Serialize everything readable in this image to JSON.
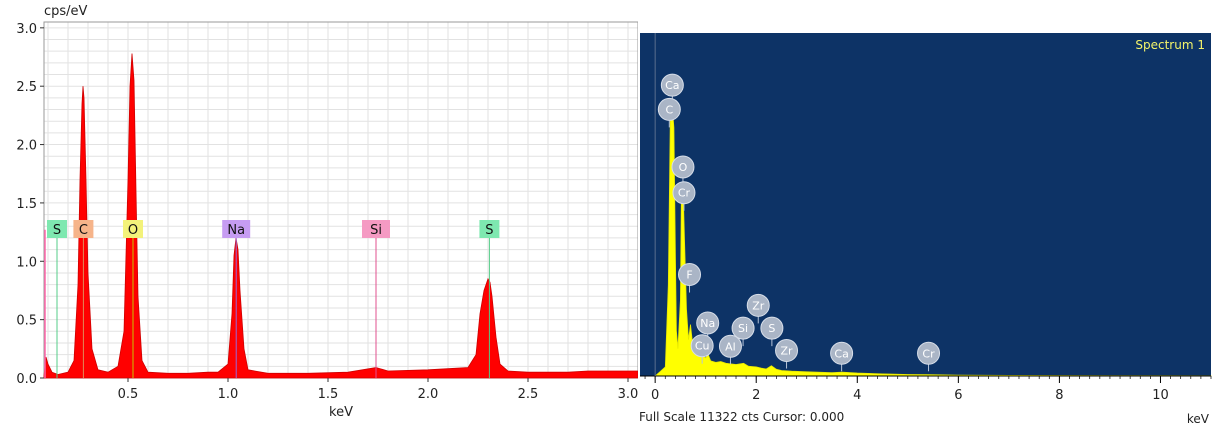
{
  "chart_data": [
    {
      "type": "area",
      "ylabel": "cps/eV",
      "xlabel": "keV",
      "xlim": [
        0.08,
        3.05
      ],
      "ylim": [
        0,
        3.05
      ],
      "x_ticks": [
        "0.5",
        "1.0",
        "1.5",
        "2.0",
        "2.5",
        "3.0"
      ],
      "x_tick_values": [
        0.5,
        1.0,
        1.5,
        2.0,
        2.5,
        3.0
      ],
      "y_ticks": [
        "0.0",
        "0.5",
        "1.0",
        "1.5",
        "2.0",
        "2.5",
        "3.0"
      ],
      "y_tick_values": [
        0.0,
        0.5,
        1.0,
        1.5,
        2.0,
        2.5,
        3.0
      ],
      "grid": true,
      "fill_color": "#ff0000",
      "series": [
        {
          "points": [
            [
              0.08,
              0.02
            ],
            [
              0.09,
              0.18
            ],
            [
              0.1,
              0.12
            ],
            [
              0.12,
              0.05
            ],
            [
              0.15,
              0.03
            ],
            [
              0.2,
              0.05
            ],
            [
              0.23,
              0.15
            ],
            [
              0.25,
              0.8
            ],
            [
              0.26,
              1.7
            ],
            [
              0.27,
              2.35
            ],
            [
              0.275,
              2.5
            ],
            [
              0.28,
              2.4
            ],
            [
              0.29,
              1.7
            ],
            [
              0.3,
              0.9
            ],
            [
              0.32,
              0.25
            ],
            [
              0.35,
              0.07
            ],
            [
              0.4,
              0.05
            ],
            [
              0.45,
              0.1
            ],
            [
              0.48,
              0.4
            ],
            [
              0.5,
              1.7
            ],
            [
              0.51,
              2.5
            ],
            [
              0.52,
              2.78
            ],
            [
              0.53,
              2.55
            ],
            [
              0.54,
              1.6
            ],
            [
              0.55,
              0.7
            ],
            [
              0.57,
              0.15
            ],
            [
              0.6,
              0.05
            ],
            [
              0.7,
              0.04
            ],
            [
              0.8,
              0.04
            ],
            [
              0.9,
              0.05
            ],
            [
              0.95,
              0.05
            ],
            [
              1.0,
              0.12
            ],
            [
              1.02,
              0.55
            ],
            [
              1.03,
              1.05
            ],
            [
              1.04,
              1.2
            ],
            [
              1.05,
              1.1
            ],
            [
              1.06,
              0.75
            ],
            [
              1.08,
              0.25
            ],
            [
              1.1,
              0.07
            ],
            [
              1.2,
              0.04
            ],
            [
              1.4,
              0.04
            ],
            [
              1.6,
              0.05
            ],
            [
              1.74,
              0.09
            ],
            [
              1.8,
              0.06
            ],
            [
              2.0,
              0.07
            ],
            [
              2.1,
              0.08
            ],
            [
              2.2,
              0.09
            ],
            [
              2.24,
              0.2
            ],
            [
              2.26,
              0.55
            ],
            [
              2.28,
              0.75
            ],
            [
              2.3,
              0.85
            ],
            [
              2.31,
              0.82
            ],
            [
              2.32,
              0.7
            ],
            [
              2.34,
              0.35
            ],
            [
              2.36,
              0.12
            ],
            [
              2.4,
              0.06
            ],
            [
              2.5,
              0.05
            ],
            [
              2.6,
              0.05
            ],
            [
              2.7,
              0.05
            ],
            [
              2.8,
              0.06
            ],
            [
              2.9,
              0.06
            ],
            [
              3.0,
              0.06
            ],
            [
              3.05,
              0.06
            ]
          ]
        }
      ],
      "element_markers": [
        {
          "label": "S",
          "x": 0.145,
          "color": "#7ee8b0",
          "line": "#55cc88"
        },
        {
          "label": "C",
          "x": 0.277,
          "color": "#f6b48a",
          "line": "#e08a5a"
        },
        {
          "label": "O",
          "x": 0.525,
          "color": "#f3f27a",
          "line": "#c8c400"
        },
        {
          "label": "Na",
          "x": 1.041,
          "color": "#c69cf2",
          "line": "#9a66d8"
        },
        {
          "label": "Si",
          "x": 1.74,
          "color": "#f59ac3",
          "line": "#e0508f"
        },
        {
          "label": "S",
          "x": 2.307,
          "color": "#7ee8b0",
          "line": "#55cc88"
        }
      ],
      "left_edge_marker_color": "#ff66aa"
    },
    {
      "type": "area",
      "title": "Spectrum 1",
      "xlabel": "keV",
      "xlim": [
        -0.3,
        11.0
      ],
      "x_ticks": [
        "0",
        "2",
        "4",
        "6",
        "8",
        "10"
      ],
      "x_tick_values": [
        0,
        2,
        4,
        6,
        8,
        10
      ],
      "background_color": "#0d3366",
      "fill_color": "#ffff00",
      "ylim": [
        0,
        11322
      ],
      "series": [
        {
          "points": [
            [
              0.0,
              0
            ],
            [
              0.2,
              300
            ],
            [
              0.26,
              3000
            ],
            [
              0.3,
              8500
            ],
            [
              0.33,
              9100
            ],
            [
              0.37,
              8200
            ],
            [
              0.4,
              4000
            ],
            [
              0.42,
              1500
            ],
            [
              0.45,
              900
            ],
            [
              0.5,
              2500
            ],
            [
              0.52,
              6000
            ],
            [
              0.55,
              6300
            ],
            [
              0.58,
              4500
            ],
            [
              0.62,
              2200
            ],
            [
              0.66,
              1200
            ],
            [
              0.7,
              1700
            ],
            [
              0.75,
              900
            ],
            [
              0.8,
              1000
            ],
            [
              0.9,
              700
            ],
            [
              1.0,
              600
            ],
            [
              1.05,
              700
            ],
            [
              1.1,
              500
            ],
            [
              1.2,
              450
            ],
            [
              1.3,
              480
            ],
            [
              1.4,
              420
            ],
            [
              1.5,
              400
            ],
            [
              1.6,
              380
            ],
            [
              1.75,
              420
            ],
            [
              1.85,
              320
            ],
            [
              2.0,
              300
            ],
            [
              2.1,
              260
            ],
            [
              2.2,
              230
            ],
            [
              2.3,
              340
            ],
            [
              2.4,
              220
            ],
            [
              2.5,
              180
            ],
            [
              2.7,
              160
            ],
            [
              3.0,
              140
            ],
            [
              3.5,
              110
            ],
            [
              3.7,
              130
            ],
            [
              4.0,
              100
            ],
            [
              4.5,
              70
            ],
            [
              5.0,
              50
            ],
            [
              5.4,
              45
            ],
            [
              6.0,
              30
            ],
            [
              7.0,
              20
            ],
            [
              8.0,
              15
            ],
            [
              9.0,
              10
            ],
            [
              10.0,
              10
            ],
            [
              11.0,
              8
            ]
          ]
        }
      ],
      "peak_labels": [
        {
          "label": "Ca",
          "x": 0.34,
          "y": 9600
        },
        {
          "label": "C",
          "x": 0.28,
          "y": 8800
        },
        {
          "label": "O",
          "x": 0.55,
          "y": 6900
        },
        {
          "label": "Cr",
          "x": 0.57,
          "y": 6050
        },
        {
          "label": "F",
          "x": 0.68,
          "y": 3350
        },
        {
          "label": "Na",
          "x": 1.04,
          "y": 1750
        },
        {
          "label": "Cu",
          "x": 0.93,
          "y": 1000
        },
        {
          "label": "Si",
          "x": 1.74,
          "y": 1580
        },
        {
          "label": "Al",
          "x": 1.49,
          "y": 980
        },
        {
          "label": "Zr",
          "x": 2.04,
          "y": 2330
        },
        {
          "label": "S",
          "x": 2.31,
          "y": 1580
        },
        {
          "label": "Zr",
          "x": 2.6,
          "y": 840
        },
        {
          "label": "Ca",
          "x": 3.69,
          "y": 750
        },
        {
          "label": "Cr",
          "x": 5.41,
          "y": 750
        }
      ],
      "status_text": "Full Scale 11322 cts Cursor: 0.000"
    }
  ]
}
